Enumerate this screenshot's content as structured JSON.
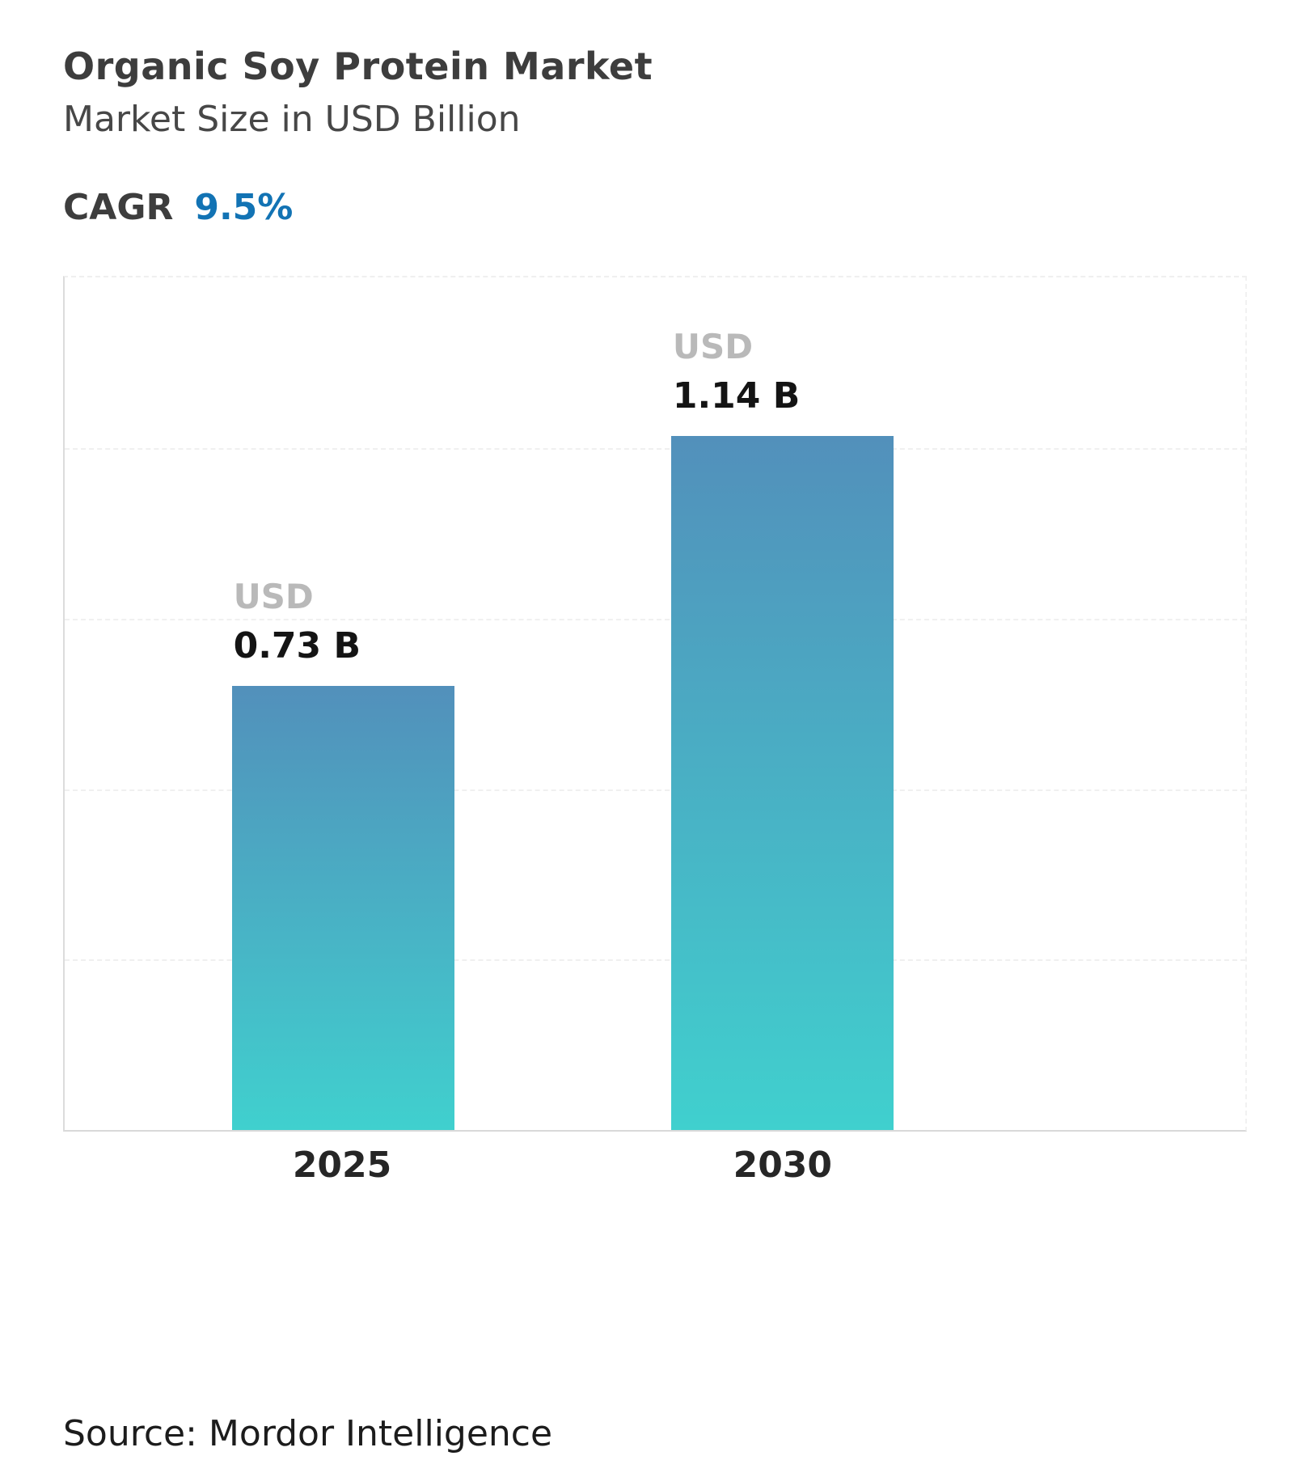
{
  "header": {
    "title": "Organic Soy Protein Market",
    "subtitle": "Market Size in USD Billion",
    "cagr_label": "CAGR",
    "cagr_value": "9.5%"
  },
  "chart_data": {
    "type": "bar",
    "title": "Organic Soy Protein Market",
    "subtitle": "Market Size in USD Billion",
    "categories": [
      "2025",
      "2030"
    ],
    "values": [
      0.73,
      1.14
    ],
    "value_labels": [
      {
        "currency": "USD",
        "amount": "0.73 B"
      },
      {
        "currency": "USD",
        "amount": "1.14 B"
      }
    ],
    "unit": "USD Billion",
    "cagr": "9.5%",
    "ylim": [
      0,
      1.4
    ],
    "grid": "horizontal-dashed",
    "legend": "none",
    "bar_gradient_top": "#5290bb",
    "bar_gradient_bottom": "#40d0ce"
  },
  "footer": {
    "source": "Source: Mordor Intelligence"
  },
  "colors": {
    "accent_blue": "#1273b4",
    "label_gray": "#b9b9b9",
    "text_dark": "#3d3d3d"
  }
}
